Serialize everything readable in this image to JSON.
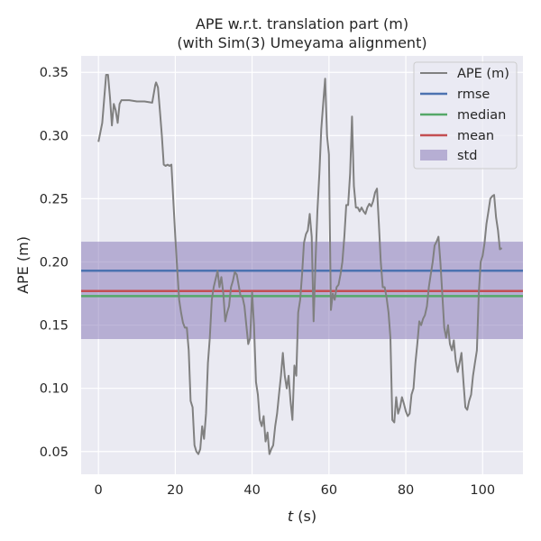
{
  "chart_data": {
    "type": "line",
    "title": "APE w.r.t. translation part (m)",
    "subtitle": "(with Sim(3) Umeyama alignment)",
    "xlabel_italic": "t",
    "xlabel_unit": " (s)",
    "ylabel": "APE (m)",
    "xlim": [
      -4.5,
      110.5
    ],
    "ylim": [
      0.032,
      0.363
    ],
    "xticks": [
      0,
      20,
      40,
      60,
      80,
      100
    ],
    "yticks": [
      0.05,
      0.1,
      0.15,
      0.2,
      0.25,
      0.3,
      0.35
    ],
    "ytick_labels": [
      "0.05",
      "0.10",
      "0.15",
      "0.20",
      "0.25",
      "0.30",
      "0.35"
    ],
    "grid": true,
    "legend_position": "top-right",
    "series": [
      {
        "name": "APE (m)",
        "color": "#808080",
        "x": [
          0,
          1,
          2,
          2.5,
          3,
          3.5,
          4,
          4.5,
          5,
          5.5,
          6,
          8,
          10,
          12,
          14,
          14.8,
          15,
          15.5,
          16,
          16.5,
          17,
          17.5,
          18,
          18.5,
          19,
          20,
          20.5,
          21,
          21.5,
          22,
          22.5,
          23,
          23.5,
          24,
          24.5,
          25,
          25.5,
          26,
          26.5,
          27,
          27.5,
          28,
          28.5,
          29,
          29.5,
          30,
          31,
          31.5,
          32,
          32.5,
          33,
          33.5,
          34,
          34.5,
          35,
          35.5,
          36,
          37,
          37.5,
          38,
          38.5,
          39,
          39.5,
          40,
          40.5,
          41,
          41.5,
          42,
          42.5,
          43,
          43.5,
          44,
          44.5,
          45,
          45.5,
          46,
          46.5,
          47,
          47.5,
          48,
          48.5,
          49,
          49.5,
          50,
          50.5,
          51,
          51.5,
          52,
          52.5,
          53,
          53.5,
          54,
          54.5,
          55,
          55.5,
          56,
          56.5,
          57,
          57.5,
          58,
          58.5,
          59,
          59.5,
          60,
          60.5,
          61,
          61.5,
          62,
          62.5,
          63,
          63.5,
          64,
          64.5,
          65,
          65.5,
          66,
          66.5,
          67,
          67.5,
          68,
          68.5,
          69,
          69.5,
          70,
          70.5,
          71,
          71.5,
          72,
          72.5,
          73,
          73.5,
          74,
          74.5,
          75,
          75.5,
          76,
          76.5,
          77,
          77.5,
          78,
          78.5,
          79,
          79.5,
          80,
          80.5,
          81,
          81.5,
          82,
          82.5,
          83,
          83.5,
          84,
          84.5,
          85,
          85.5,
          86,
          86.5,
          87,
          87.5,
          88,
          88.5,
          89,
          89.5,
          90,
          90.5,
          91,
          91.5,
          92,
          92.5,
          93,
          93.5,
          94,
          94.5,
          95,
          95.5,
          96,
          96.5,
          97,
          97.5,
          98,
          98.5,
          99,
          99.5,
          100,
          100.5,
          101,
          101.5,
          102,
          102.5,
          103,
          103.5,
          104,
          104.5,
          105
        ],
        "y": [
          0.295,
          0.31,
          0.348,
          0.348,
          0.33,
          0.308,
          0.325,
          0.32,
          0.31,
          0.325,
          0.328,
          0.328,
          0.327,
          0.327,
          0.326,
          0.34,
          0.342,
          0.338,
          0.32,
          0.3,
          0.277,
          0.276,
          0.277,
          0.276,
          0.277,
          0.22,
          0.195,
          0.17,
          0.16,
          0.152,
          0.148,
          0.148,
          0.13,
          0.09,
          0.085,
          0.055,
          0.05,
          0.048,
          0.052,
          0.07,
          0.06,
          0.08,
          0.12,
          0.14,
          0.17,
          0.18,
          0.193,
          0.18,
          0.188,
          0.175,
          0.153,
          0.16,
          0.165,
          0.18,
          0.185,
          0.192,
          0.19,
          0.173,
          0.172,
          0.165,
          0.15,
          0.135,
          0.14,
          0.176,
          0.15,
          0.105,
          0.095,
          0.075,
          0.07,
          0.078,
          0.058,
          0.065,
          0.048,
          0.052,
          0.055,
          0.07,
          0.08,
          0.095,
          0.11,
          0.128,
          0.11,
          0.1,
          0.11,
          0.09,
          0.075,
          0.118,
          0.11,
          0.16,
          0.17,
          0.19,
          0.215,
          0.222,
          0.225,
          0.238,
          0.22,
          0.153,
          0.2,
          0.24,
          0.27,
          0.305,
          0.325,
          0.345,
          0.3,
          0.285,
          0.162,
          0.175,
          0.17,
          0.18,
          0.182,
          0.19,
          0.2,
          0.22,
          0.245,
          0.245,
          0.27,
          0.315,
          0.26,
          0.243,
          0.243,
          0.24,
          0.243,
          0.24,
          0.238,
          0.243,
          0.246,
          0.244,
          0.248,
          0.255,
          0.258,
          0.23,
          0.2,
          0.18,
          0.18,
          0.172,
          0.16,
          0.14,
          0.075,
          0.073,
          0.093,
          0.08,
          0.085,
          0.093,
          0.088,
          0.082,
          0.078,
          0.08,
          0.095,
          0.1,
          0.12,
          0.135,
          0.153,
          0.15,
          0.155,
          0.158,
          0.165,
          0.18,
          0.19,
          0.2,
          0.213,
          0.216,
          0.22,
          0.2,
          0.175,
          0.148,
          0.14,
          0.15,
          0.135,
          0.13,
          0.138,
          0.122,
          0.113,
          0.12,
          0.128,
          0.105,
          0.085,
          0.083,
          0.09,
          0.095,
          0.11,
          0.12,
          0.13,
          0.175,
          0.2,
          0.205,
          0.215,
          0.23,
          0.24,
          0.25,
          0.252,
          0.253,
          0.235,
          0.225,
          0.21,
          0.211
        ]
      },
      {
        "name": "rmse",
        "color": "#4c72b0",
        "value": 0.193
      },
      {
        "name": "median",
        "color": "#55a868",
        "value": 0.173
      },
      {
        "name": "mean",
        "color": "#c44e52",
        "value": 0.177
      }
    ],
    "std_band": {
      "name": "std",
      "color": "#8172b3",
      "lower": 0.139,
      "upper": 0.216
    }
  }
}
